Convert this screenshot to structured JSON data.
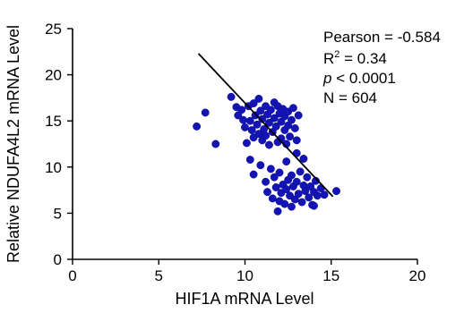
{
  "chart_data": {
    "type": "scatter",
    "xlabel": "HIF1A mRNA Level",
    "ylabel": "Relative NDUFA4L2 mRNA Level",
    "xlim": [
      0,
      20
    ],
    "ylim": [
      0,
      25
    ],
    "x_ticks": [
      "0",
      "5",
      "10",
      "15",
      "20"
    ],
    "y_ticks": [
      "0",
      "5",
      "10",
      "15",
      "20",
      "25"
    ],
    "grid": false,
    "point_color": "#1414b4",
    "regression_line": {
      "x": [
        7.3,
        15.1
      ],
      "y": [
        22.3,
        6.8
      ]
    },
    "stats": {
      "pearson": "Pearson = -0.584",
      "r2_prefix": "R",
      "r2_sup": "2",
      "r2_value": " = 0.34",
      "p_symbol": "p",
      "p_rest": " < 0.0001",
      "n": "N = 604"
    },
    "points": [
      [
        7.2,
        14.4
      ],
      [
        7.7,
        15.9
      ],
      [
        8.3,
        12.5
      ],
      [
        9.2,
        17.6
      ],
      [
        9.5,
        16.5
      ],
      [
        9.6,
        15.6
      ],
      [
        9.8,
        16.2
      ],
      [
        9.9,
        15.1
      ],
      [
        10.0,
        14.3
      ],
      [
        10.1,
        12.6
      ],
      [
        10.2,
        16.6
      ],
      [
        10.3,
        15.0
      ],
      [
        10.4,
        14.0
      ],
      [
        10.5,
        16.9
      ],
      [
        10.5,
        13.2
      ],
      [
        10.6,
        15.6
      ],
      [
        10.7,
        14.6
      ],
      [
        10.8,
        17.4
      ],
      [
        10.8,
        13.6
      ],
      [
        10.9,
        16.1
      ],
      [
        11.0,
        15.2
      ],
      [
        11.0,
        12.9
      ],
      [
        11.1,
        14.1
      ],
      [
        11.2,
        16.6
      ],
      [
        11.2,
        13.4
      ],
      [
        11.3,
        15.7
      ],
      [
        11.4,
        14.8
      ],
      [
        11.4,
        12.4
      ],
      [
        11.5,
        16.2
      ],
      [
        11.6,
        13.8
      ],
      [
        11.7,
        15.3
      ],
      [
        11.7,
        17.0
      ],
      [
        11.8,
        14.4
      ],
      [
        11.9,
        16.6
      ],
      [
        11.9,
        12.7
      ],
      [
        12.0,
        15.8
      ],
      [
        12.1,
        13.1
      ],
      [
        12.1,
        14.9
      ],
      [
        12.2,
        16.3
      ],
      [
        12.3,
        14.0
      ],
      [
        12.3,
        15.5
      ],
      [
        12.4,
        12.5
      ],
      [
        12.5,
        16.0
      ],
      [
        12.5,
        14.5
      ],
      [
        12.6,
        13.3
      ],
      [
        12.7,
        15.1
      ],
      [
        12.8,
        16.4
      ],
      [
        12.9,
        14.2
      ],
      [
        13.0,
        12.9
      ],
      [
        13.1,
        15.6
      ],
      [
        10.3,
        10.8
      ],
      [
        10.5,
        9.2
      ],
      [
        10.9,
        10.2
      ],
      [
        11.2,
        8.4
      ],
      [
        11.3,
        7.3
      ],
      [
        11.5,
        9.8
      ],
      [
        11.6,
        6.6
      ],
      [
        11.7,
        8.9
      ],
      [
        11.8,
        7.8
      ],
      [
        11.9,
        5.2
      ],
      [
        12.0,
        6.3
      ],
      [
        12.0,
        9.4
      ],
      [
        12.1,
        7.2
      ],
      [
        12.2,
        8.1
      ],
      [
        12.3,
        6.0
      ],
      [
        12.4,
        10.6
      ],
      [
        12.4,
        7.6
      ],
      [
        12.5,
        8.6
      ],
      [
        12.6,
        6.9
      ],
      [
        12.7,
        9.1
      ],
      [
        12.7,
        5.7
      ],
      [
        12.8,
        7.9
      ],
      [
        12.9,
        6.5
      ],
      [
        13.0,
        8.4
      ],
      [
        13.0,
        11.5
      ],
      [
        13.1,
        7.1
      ],
      [
        13.2,
        9.5
      ],
      [
        13.3,
        6.2
      ],
      [
        13.4,
        8.0
      ],
      [
        13.4,
        10.9
      ],
      [
        13.5,
        7.4
      ],
      [
        13.6,
        8.9
      ],
      [
        13.7,
        6.7
      ],
      [
        13.8,
        7.9
      ],
      [
        13.9,
        5.9
      ],
      [
        14.0,
        7.3
      ],
      [
        14.1,
        8.5
      ],
      [
        14.2,
        6.9
      ],
      [
        14.4,
        7.7
      ],
      [
        14.6,
        7.0
      ],
      [
        15.3,
        7.4
      ],
      [
        14.0,
        5.8
      ]
    ]
  }
}
